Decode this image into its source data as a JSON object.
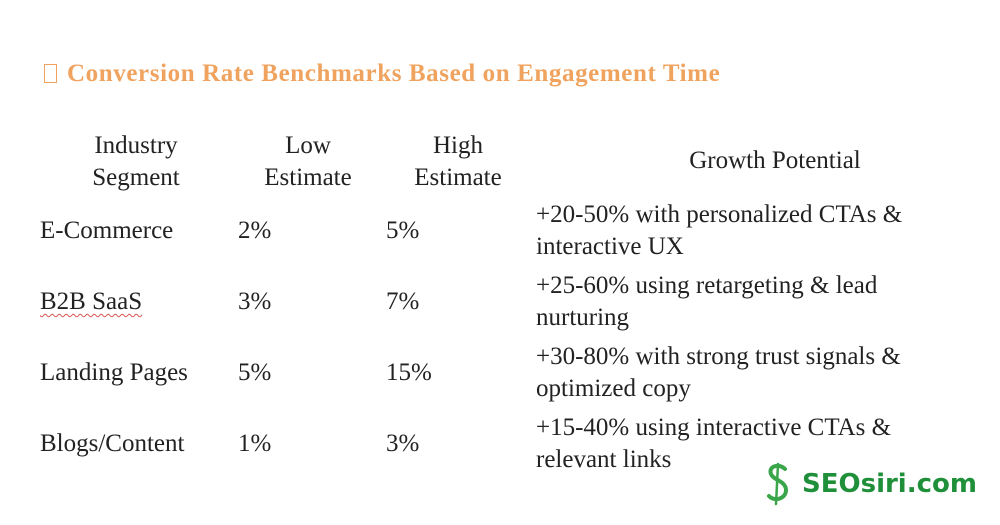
{
  "title": "Conversion Rate Benchmarks Based on Engagement Time",
  "title_icon": "missing-glyph-box",
  "colors": {
    "title": "#f0a35e",
    "text": "#222222",
    "logo_text": "#1f8f3a",
    "logo_mark": "#3aa64a",
    "spellcheck_underline": "#d9534f"
  },
  "table": {
    "headers": {
      "segment": [
        "Industry",
        "Segment"
      ],
      "low": [
        "Low",
        "Estimate"
      ],
      "high": [
        "High",
        "Estimate"
      ],
      "growth": "Growth Potential"
    },
    "rows": [
      {
        "segment": "E-Commerce",
        "low": "2%",
        "high": "5%",
        "growth": [
          "+20-50% with personalized CTAs &",
          "interactive UX"
        ]
      },
      {
        "segment": "B2B SaaS",
        "low": "3%",
        "high": "7%",
        "growth": [
          "+25-60% using retargeting & lead",
          "nurturing"
        ]
      },
      {
        "segment": "Landing Pages",
        "low": "5%",
        "high": "15%",
        "growth": [
          "+30-80% with strong trust signals &",
          "optimized copy"
        ]
      },
      {
        "segment": "Blogs/Content",
        "low": "1%",
        "high": "3%",
        "growth": [
          "+15-40% using interactive CTAs &",
          "relevant links"
        ]
      }
    ]
  },
  "logo": {
    "text": "SEOsiri.com",
    "icon": "seosiri-s-icon"
  }
}
